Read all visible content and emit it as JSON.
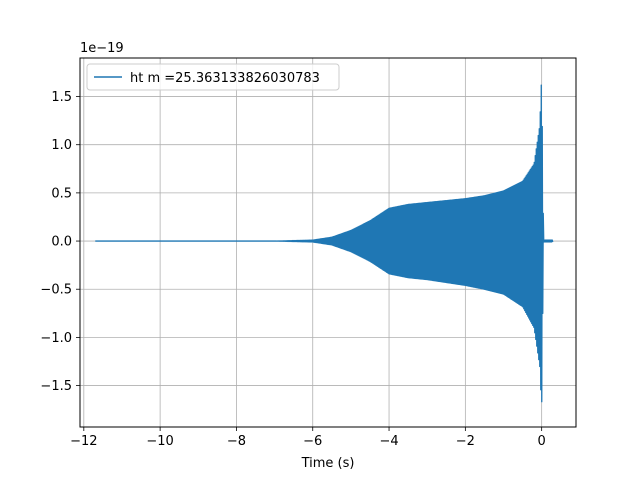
{
  "chart_data": {
    "type": "line",
    "title": "",
    "xlabel": "Time (s)",
    "ylabel": "",
    "offset_text": "1e−19",
    "xlim": [
      -12.1,
      0.9
    ],
    "ylim": [
      -1.93,
      1.9
    ],
    "x_ticks": [
      -12,
      -10,
      -8,
      -6,
      -4,
      -2,
      0
    ],
    "x_tick_labels": [
      "−12",
      "−10",
      "−8",
      "−6",
      "−4",
      "−2",
      "0"
    ],
    "y_ticks": [
      -1.5,
      -1.0,
      -0.5,
      0.0,
      0.5,
      1.0,
      1.5
    ],
    "y_tick_labels": [
      "−1.5",
      "−1.0",
      "−0.5",
      "0.0",
      "0.5",
      "1.0",
      "1.5"
    ],
    "grid": true,
    "legend_position": "top-left",
    "series": [
      {
        "name": "ht m =25.363133826030783",
        "color": "#1f77b4",
        "time_range": [
          -11.7,
          0.3
        ],
        "envelope": {
          "x": [
            -11.7,
            -7.0,
            -6.0,
            -5.5,
            -5.0,
            -4.5,
            -4.0,
            -3.5,
            -3.0,
            -2.0,
            -1.5,
            -1.0,
            -0.5,
            -0.2,
            -0.05,
            0.0,
            0.05,
            0.3
          ],
          "max": [
            0.0,
            0.0,
            0.01,
            0.04,
            0.11,
            0.21,
            0.34,
            0.38,
            0.4,
            0.44,
            0.47,
            0.52,
            0.62,
            0.8,
            1.2,
            1.73,
            0.01,
            0.01
          ],
          "min": [
            0.0,
            0.0,
            -0.01,
            -0.04,
            -0.11,
            -0.21,
            -0.34,
            -0.38,
            -0.4,
            -0.46,
            -0.5,
            -0.55,
            -0.68,
            -0.9,
            -1.3,
            -1.76,
            -0.01,
            -0.01
          ]
        }
      }
    ]
  }
}
